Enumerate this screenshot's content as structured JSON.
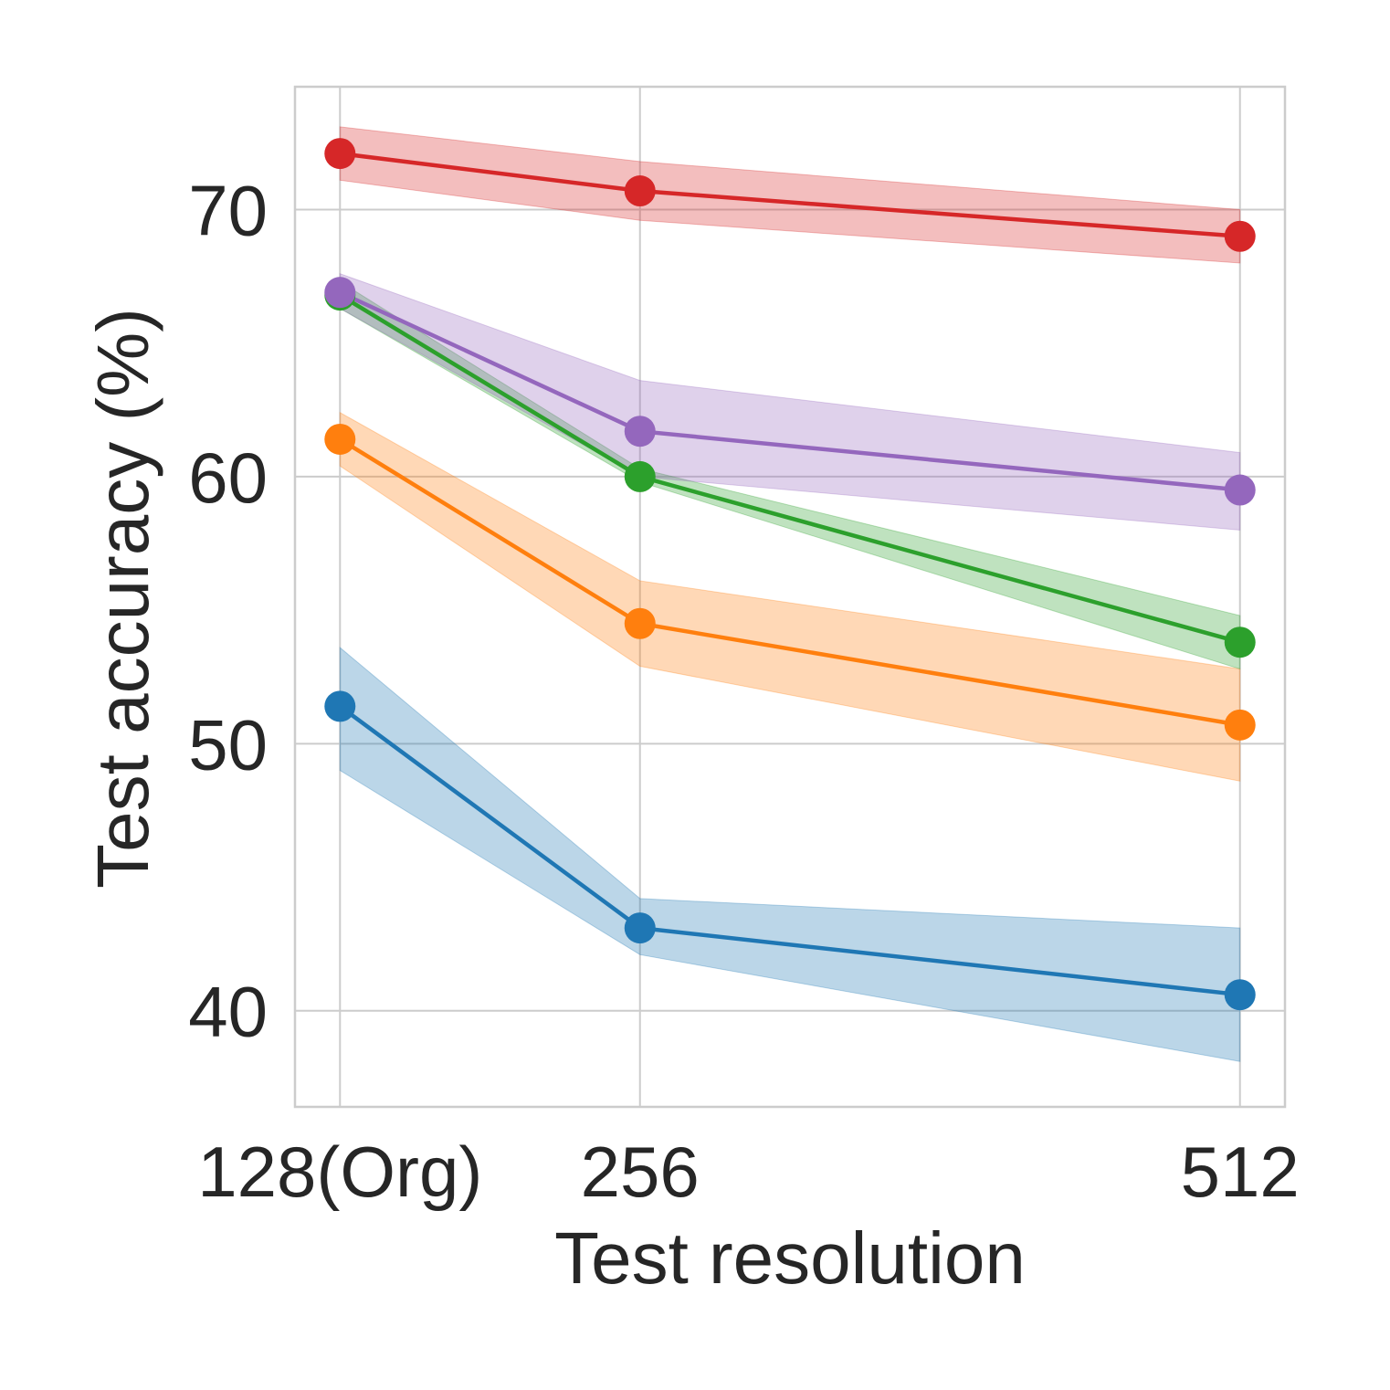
{
  "chart_data": {
    "type": "line",
    "title": "",
    "xlabel": "Test resolution",
    "ylabel": "Test accuracy (%)",
    "categories": [
      "128(Org)",
      "256",
      "512"
    ],
    "x": [
      128,
      256,
      512
    ],
    "xlim": [
      108.8,
      531.2
    ],
    "ylim": [
      36.4,
      74.6
    ],
    "yticks": [
      40,
      50,
      60,
      70
    ],
    "grid": true,
    "legend": "none",
    "series": [
      {
        "name": "series-blue",
        "color": "#1f77b4",
        "values": [
          51.4,
          43.1,
          40.6
        ],
        "lower": [
          49.0,
          42.1,
          38.1
        ],
        "upper": [
          53.6,
          44.2,
          43.1
        ]
      },
      {
        "name": "series-orange",
        "color": "#ff7f0e",
        "values": [
          61.4,
          54.5,
          50.7
        ],
        "lower": [
          60.4,
          52.9,
          48.6
        ],
        "upper": [
          62.4,
          56.1,
          52.8
        ]
      },
      {
        "name": "series-green",
        "color": "#2ca02c",
        "values": [
          66.8,
          60.0,
          53.8
        ],
        "lower": [
          66.3,
          59.8,
          52.8
        ],
        "upper": [
          67.3,
          60.3,
          54.8
        ]
      },
      {
        "name": "series-purple",
        "color": "#9467bd",
        "values": [
          66.9,
          61.7,
          59.5
        ],
        "lower": [
          66.3,
          60.0,
          58.0
        ],
        "upper": [
          67.6,
          63.6,
          60.9
        ]
      },
      {
        "name": "series-red",
        "color": "#d62728",
        "values": [
          72.1,
          70.7,
          69.0
        ],
        "lower": [
          71.1,
          69.6,
          68.0
        ],
        "upper": [
          73.1,
          71.8,
          70.0
        ]
      }
    ]
  }
}
